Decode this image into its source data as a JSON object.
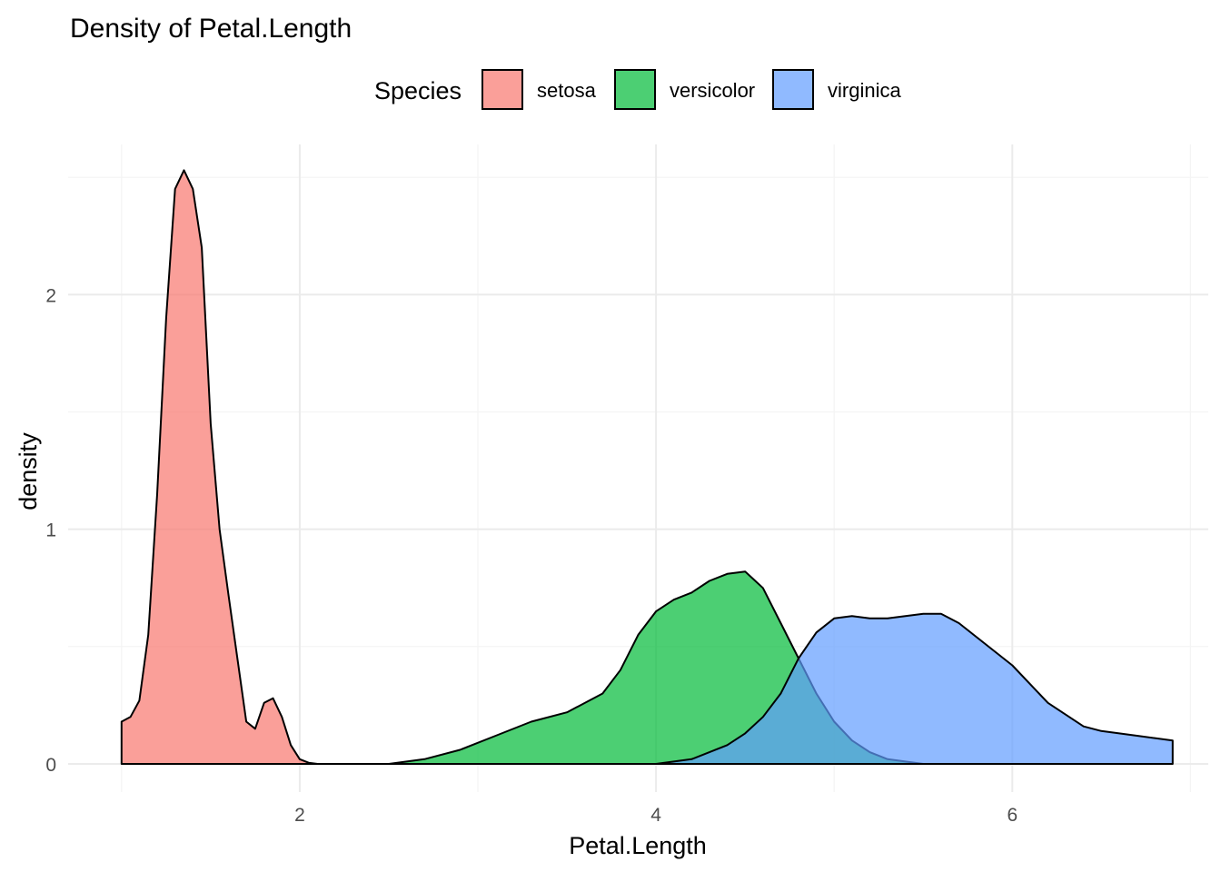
{
  "chart_data": {
    "type": "area",
    "title": "Density of Petal.Length",
    "xlabel": "Petal.Length",
    "ylabel": "density",
    "xlim": [
      0.7,
      7.1
    ],
    "ylim": [
      -0.12,
      2.64
    ],
    "x_ticks": [
      2,
      4,
      6
    ],
    "y_ticks": [
      0,
      1,
      2
    ],
    "x_minor_ticks": [
      1,
      3,
      5,
      7
    ],
    "y_minor_ticks": [
      0.5,
      1.5,
      2.5
    ],
    "grid": true,
    "legend": {
      "title": "Species",
      "position": "top",
      "entries": [
        "setosa",
        "versicolor",
        "virginica"
      ]
    },
    "colors": {
      "setosa": "#F8766D",
      "versicolor": "#00BA38",
      "virginica": "#619CFF",
      "outline": "#000000",
      "grid_major": "#EBEBEB",
      "grid_minor": "#F4F4F4",
      "axis_text": "#4D4D4D"
    },
    "fill_opacity": 0.7,
    "series": [
      {
        "name": "setosa",
        "x": [
          1.0,
          1.05,
          1.1,
          1.15,
          1.2,
          1.25,
          1.3,
          1.35,
          1.4,
          1.45,
          1.5,
          1.55,
          1.6,
          1.65,
          1.7,
          1.75,
          1.8,
          1.85,
          1.9,
          1.95,
          2.0,
          2.05,
          2.1,
          2.2,
          2.5
        ],
        "y": [
          0.18,
          0.2,
          0.27,
          0.55,
          1.15,
          1.9,
          2.45,
          2.53,
          2.45,
          2.2,
          1.45,
          1.0,
          0.72,
          0.45,
          0.18,
          0.15,
          0.26,
          0.28,
          0.2,
          0.08,
          0.02,
          0.005,
          0.0,
          0.0,
          0.0
        ]
      },
      {
        "name": "versicolor",
        "x": [
          2.5,
          2.7,
          2.9,
          3.1,
          3.3,
          3.5,
          3.7,
          3.8,
          3.9,
          4.0,
          4.1,
          4.2,
          4.3,
          4.4,
          4.5,
          4.6,
          4.7,
          4.8,
          4.9,
          5.0,
          5.1,
          5.2,
          5.3,
          5.5,
          5.7
        ],
        "y": [
          0.0,
          0.02,
          0.06,
          0.12,
          0.18,
          0.22,
          0.3,
          0.4,
          0.55,
          0.65,
          0.7,
          0.73,
          0.78,
          0.81,
          0.82,
          0.75,
          0.6,
          0.45,
          0.3,
          0.18,
          0.1,
          0.05,
          0.02,
          0.0,
          0.0
        ]
      },
      {
        "name": "virginica",
        "x": [
          4.0,
          4.2,
          4.4,
          4.5,
          4.6,
          4.7,
          4.8,
          4.9,
          5.0,
          5.1,
          5.2,
          5.3,
          5.4,
          5.5,
          5.6,
          5.7,
          5.8,
          5.9,
          6.0,
          6.2,
          6.4,
          6.5,
          6.6,
          6.7,
          6.8,
          6.9
        ],
        "y": [
          0.0,
          0.02,
          0.08,
          0.13,
          0.2,
          0.3,
          0.45,
          0.56,
          0.62,
          0.63,
          0.62,
          0.62,
          0.63,
          0.64,
          0.64,
          0.6,
          0.54,
          0.48,
          0.42,
          0.26,
          0.16,
          0.14,
          0.13,
          0.12,
          0.11,
          0.1
        ]
      }
    ]
  }
}
